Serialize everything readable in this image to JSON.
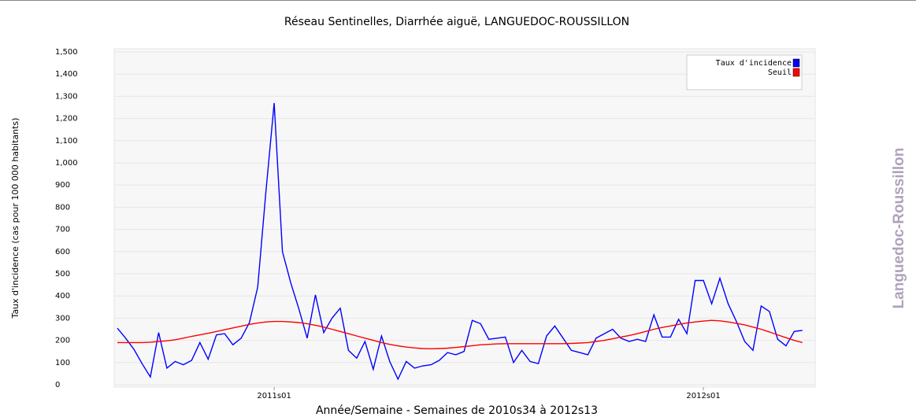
{
  "chart_data": {
    "type": "line",
    "title": "Réseau Sentinelles, Diarrhée aiguë, LANGUEDOC-ROUSSILLON",
    "x_label": "Année/Semaine - Semaines de 2010s34 à 2012s13",
    "y_label": "Taux d'incidence (cas pour 100 000 habitants)",
    "panel_label": "Languedoc-Roussillon",
    "categories": [
      null,
      null,
      null,
      null,
      null,
      null,
      null,
      null,
      null,
      null,
      null,
      null,
      null,
      null,
      null,
      null,
      null,
      null,
      null,
      "2011s01",
      null,
      null,
      null,
      null,
      null,
      null,
      null,
      null,
      null,
      null,
      null,
      null,
      null,
      null,
      null,
      null,
      null,
      null,
      null,
      null,
      null,
      null,
      null,
      null,
      null,
      null,
      null,
      null,
      null,
      null,
      null,
      null,
      null,
      null,
      null,
      null,
      null,
      null,
      null,
      null,
      null,
      null,
      null,
      null,
      null,
      null,
      null,
      null,
      null,
      null,
      null,
      "2012s01",
      null,
      null,
      null,
      null,
      null,
      null,
      null,
      null,
      null,
      null,
      null,
      null
    ],
    "series": [
      {
        "name": "Taux d'incidence",
        "color": "#0000ff",
        "values": [
          255,
          210,
          160,
          95,
          35,
          235,
          75,
          105,
          90,
          110,
          190,
          115,
          225,
          230,
          180,
          210,
          280,
          440,
          870,
          1270,
          600,
          460,
          340,
          210,
          405,
          235,
          300,
          345,
          155,
          120,
          195,
          70,
          220,
          105,
          25,
          105,
          75,
          85,
          90,
          110,
          145,
          135,
          150,
          290,
          275,
          205,
          210,
          215,
          100,
          155,
          105,
          95,
          220,
          265,
          210,
          155,
          145,
          135,
          210,
          230,
          250,
          210,
          195,
          205,
          195,
          315,
          215,
          215,
          295,
          230,
          470,
          470,
          365,
          480,
          365,
          285,
          195,
          155,
          355,
          330,
          205,
          175,
          240,
          245
        ]
      },
      {
        "name": "Seuil",
        "color": "#ff0000",
        "values": [
          190,
          190,
          190,
          190,
          192,
          195,
          198,
          203,
          210,
          218,
          225,
          232,
          240,
          248,
          256,
          264,
          272,
          278,
          283,
          285,
          285,
          283,
          280,
          275,
          268,
          260,
          250,
          240,
          230,
          220,
          210,
          200,
          190,
          182,
          175,
          170,
          166,
          163,
          162,
          163,
          165,
          168,
          172,
          176,
          180,
          182,
          184,
          185,
          185,
          185,
          185,
          185,
          185,
          185,
          185,
          186,
          188,
          190,
          195,
          200,
          207,
          215,
          222,
          230,
          240,
          250,
          258,
          265,
          272,
          278,
          283,
          287,
          290,
          288,
          283,
          277,
          270,
          260,
          250,
          238,
          225,
          212,
          200,
          190
        ]
      }
    ],
    "ylim": [
      0,
      1500
    ],
    "yticks": [
      0,
      100,
      200,
      300,
      400,
      500,
      600,
      700,
      800,
      900,
      {
        "value": 1000,
        "label": "1,000"
      },
      {
        "value": 1100,
        "label": "1,100"
      },
      {
        "value": 1200,
        "label": "1,200"
      },
      {
        "value": 1300,
        "label": "1,300"
      },
      {
        "value": 1400,
        "label": "1,400"
      },
      {
        "value": 1500,
        "label": "1,500"
      }
    ],
    "grid": true,
    "legend": "upper right"
  }
}
